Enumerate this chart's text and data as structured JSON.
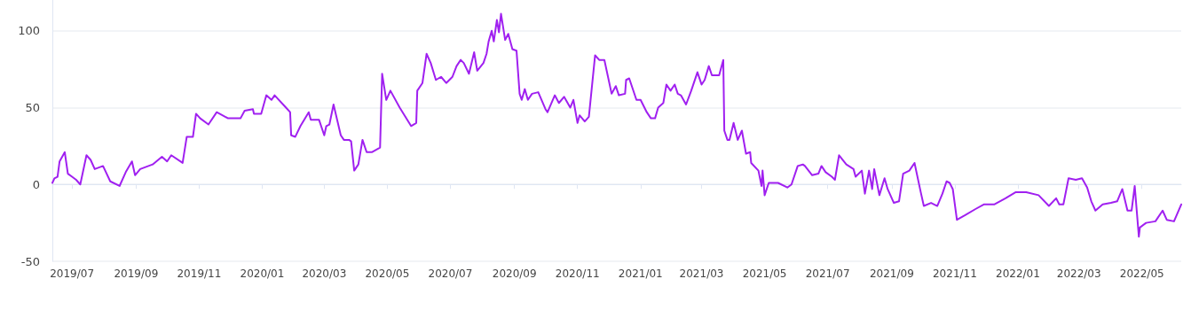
{
  "chart_data": {
    "type": "line",
    "x": [
      "2019-06-12",
      "2019-06-14",
      "2019-06-17",
      "2019-06-19",
      "2019-06-24",
      "2019-06-27",
      "2019-07-01",
      "2019-07-05",
      "2019-07-09",
      "2019-07-15",
      "2019-07-19",
      "2019-07-23",
      "2019-07-31",
      "2019-08-07",
      "2019-08-16",
      "2019-08-22",
      "2019-08-28",
      "2019-08-31",
      "2019-09-05",
      "2019-09-17",
      "2019-09-26",
      "2019-10-01",
      "2019-10-05",
      "2019-10-16",
      "2019-10-20",
      "2019-10-26",
      "2019-10-29",
      "2019-11-02",
      "2019-11-10",
      "2019-11-18",
      "2019-11-29",
      "2019-12-11",
      "2019-12-15",
      "2019-12-23",
      "2019-12-24",
      "2019-12-31",
      "2020-01-05",
      "2020-01-10",
      "2020-01-13",
      "2020-01-24",
      "2020-01-28",
      "2020-01-29",
      "2020-02-02",
      "2020-02-07",
      "2020-02-15",
      "2020-02-17",
      "2020-02-25",
      "2020-03-01",
      "2020-03-03",
      "2020-03-06",
      "2020-03-10",
      "2020-03-17",
      "2020-03-20",
      "2020-03-25",
      "2020-03-27",
      "2020-03-30",
      "2020-04-03",
      "2020-04-07",
      "2020-04-11",
      "2020-04-16",
      "2020-04-24",
      "2020-04-26",
      "2020-04-30",
      "2020-05-04",
      "2020-05-13",
      "2020-05-24",
      "2020-05-29",
      "2020-05-30",
      "2020-06-04",
      "2020-06-08",
      "2020-06-12",
      "2020-06-17",
      "2020-06-22",
      "2020-06-27",
      "2020-07-03",
      "2020-07-07",
      "2020-07-11",
      "2020-07-14",
      "2020-07-19",
      "2020-07-24",
      "2020-07-27",
      "2020-08-02",
      "2020-08-05",
      "2020-08-07",
      "2020-08-10",
      "2020-08-12",
      "2020-08-15",
      "2020-08-17",
      "2020-08-19",
      "2020-08-23",
      "2020-08-26",
      "2020-08-30",
      "2020-09-03",
      "2020-09-06",
      "2020-09-08",
      "2020-09-11",
      "2020-09-14",
      "2020-09-18",
      "2020-09-24",
      "2020-10-01",
      "2020-10-03",
      "2020-10-10",
      "2020-10-14",
      "2020-10-19",
      "2020-10-25",
      "2020-10-28",
      "2020-11-01",
      "2020-11-03",
      "2020-11-08",
      "2020-11-12",
      "2020-11-18",
      "2020-11-22",
      "2020-11-27",
      "2020-12-04",
      "2020-12-08",
      "2020-12-11",
      "2020-12-17",
      "2020-12-18",
      "2020-12-21",
      "2020-12-28",
      "2021-01-01",
      "2021-01-07",
      "2021-01-11",
      "2021-01-15",
      "2021-01-18",
      "2021-01-23",
      "2021-01-26",
      "2021-01-30",
      "2021-02-03",
      "2021-02-06",
      "2021-02-09",
      "2021-02-14",
      "2021-02-19",
      "2021-02-25",
      "2021-03-01",
      "2021-03-04",
      "2021-03-08",
      "2021-03-11",
      "2021-03-18",
      "2021-03-22",
      "2021-03-23",
      "2021-03-26",
      "2021-03-28",
      "2021-04-01",
      "2021-04-05",
      "2021-04-09",
      "2021-04-13",
      "2021-04-17",
      "2021-04-18",
      "2021-04-25",
      "2021-04-28",
      "2021-04-29",
      "2021-05-01",
      "2021-05-05",
      "2021-05-14",
      "2021-05-23",
      "2021-05-27",
      "2021-06-02",
      "2021-06-07",
      "2021-06-09",
      "2021-06-16",
      "2021-06-22",
      "2021-06-25",
      "2021-06-29",
      "2021-07-05",
      "2021-07-08",
      "2021-07-12",
      "2021-07-19",
      "2021-07-26",
      "2021-07-28",
      "2021-08-03",
      "2021-08-06",
      "2021-08-10",
      "2021-08-13",
      "2021-08-15",
      "2021-08-20",
      "2021-08-25",
      "2021-08-28",
      "2021-09-03",
      "2021-09-08",
      "2021-09-12",
      "2021-09-18",
      "2021-09-23",
      "2021-09-29",
      "2021-10-02",
      "2021-10-09",
      "2021-10-15",
      "2021-10-20",
      "2021-10-24",
      "2021-10-27",
      "2021-10-30",
      "2021-11-03",
      "2021-11-11",
      "2021-11-21",
      "2021-11-29",
      "2021-12-09",
      "2021-12-20",
      "2021-12-30",
      "2022-01-09",
      "2022-01-21",
      "2022-01-31",
      "2022-02-07",
      "2022-02-10",
      "2022-02-14",
      "2022-02-19",
      "2022-02-26",
      "2022-03-04",
      "2022-03-09",
      "2022-03-13",
      "2022-03-17",
      "2022-03-24",
      "2022-04-01",
      "2022-04-07",
      "2022-04-12",
      "2022-04-17",
      "2022-04-21",
      "2022-04-24",
      "2022-04-28",
      "2022-04-29",
      "2022-05-05",
      "2022-05-14",
      "2022-05-21",
      "2022-05-25",
      "2022-06-01",
      "2022-06-08"
    ],
    "series": [
      {
        "color": "#a020f0",
        "values": [
          1,
          4,
          5,
          15,
          21,
          7,
          5,
          3,
          0,
          19,
          16,
          10,
          12,
          2,
          -1,
          8,
          15,
          6,
          10,
          13,
          18,
          15,
          19,
          14,
          31,
          31,
          46,
          43,
          39,
          47,
          43,
          43,
          48,
          49,
          46,
          46,
          58,
          55,
          58,
          50,
          47,
          32,
          31,
          38,
          47,
          42,
          42,
          32,
          38,
          39,
          52,
          32,
          29,
          29,
          28,
          9,
          13,
          29,
          21,
          21,
          24,
          72,
          55,
          61,
          50,
          38,
          40,
          61,
          66,
          85,
          79,
          68,
          70,
          66,
          70,
          77,
          81,
          79,
          72,
          86,
          74,
          79,
          85,
          93,
          100,
          93,
          107,
          99,
          111,
          94,
          98,
          88,
          87,
          59,
          55,
          62,
          55,
          59,
          60,
          49,
          47,
          58,
          53,
          57,
          50,
          55,
          40,
          45,
          41,
          44,
          84,
          81,
          81,
          59,
          64,
          58,
          59,
          68,
          69,
          55,
          55,
          47,
          43,
          43,
          50,
          53,
          65,
          61,
          65,
          59,
          58,
          52,
          61,
          73,
          65,
          68,
          77,
          71,
          71,
          81,
          35,
          29,
          29,
          40,
          29,
          35,
          20,
          21,
          14,
          9,
          -1,
          9,
          -7,
          1,
          1,
          -2,
          0,
          12,
          13,
          12,
          6,
          7,
          12,
          8,
          5,
          3,
          19,
          13,
          10,
          5,
          9,
          -6,
          9,
          -3,
          10,
          -7,
          4,
          -3,
          -12,
          -11,
          7,
          9,
          14,
          -5,
          -14,
          -12,
          -14,
          -6,
          2,
          1,
          -3,
          -23,
          -20,
          -16,
          -13,
          -13,
          -9,
          -5,
          -5,
          -7,
          -14,
          -9,
          -13,
          -13,
          4,
          3,
          4,
          -2,
          -11,
          -17,
          -13,
          -12,
          -11,
          -3,
          -17,
          -17,
          -1,
          -34,
          -28,
          -25,
          -24,
          -17,
          -23,
          -24,
          -13
        ]
      }
    ],
    "xlim": [
      "2019-06-12",
      "2022-06-08"
    ],
    "xticks": [
      {
        "value": "2019-07-01",
        "label": "2019/07"
      },
      {
        "value": "2019-09-01",
        "label": "2019/09"
      },
      {
        "value": "2019-11-01",
        "label": "2019/11"
      },
      {
        "value": "2020-01-01",
        "label": "2020/01"
      },
      {
        "value": "2020-03-01",
        "label": "2020/03"
      },
      {
        "value": "2020-05-01",
        "label": "2020/05"
      },
      {
        "value": "2020-07-01",
        "label": "2020/07"
      },
      {
        "value": "2020-09-01",
        "label": "2020/09"
      },
      {
        "value": "2020-11-01",
        "label": "2020/11"
      },
      {
        "value": "2021-01-01",
        "label": "2021/01"
      },
      {
        "value": "2021-03-01",
        "label": "2021/03"
      },
      {
        "value": "2021-05-01",
        "label": "2021/05"
      },
      {
        "value": "2021-07-01",
        "label": "2021/07"
      },
      {
        "value": "2021-09-01",
        "label": "2021/09"
      },
      {
        "value": "2021-11-01",
        "label": "2021/11"
      },
      {
        "value": "2022-01-01",
        "label": "2022/01"
      },
      {
        "value": "2022-03-01",
        "label": "2022/03"
      },
      {
        "value": "2022-05-01",
        "label": "2022/05"
      }
    ],
    "ylim": [
      -50,
      120
    ],
    "yticks": [
      -50,
      0,
      50,
      100
    ],
    "grid": "y",
    "marker": "none",
    "line_style": "solid"
  }
}
